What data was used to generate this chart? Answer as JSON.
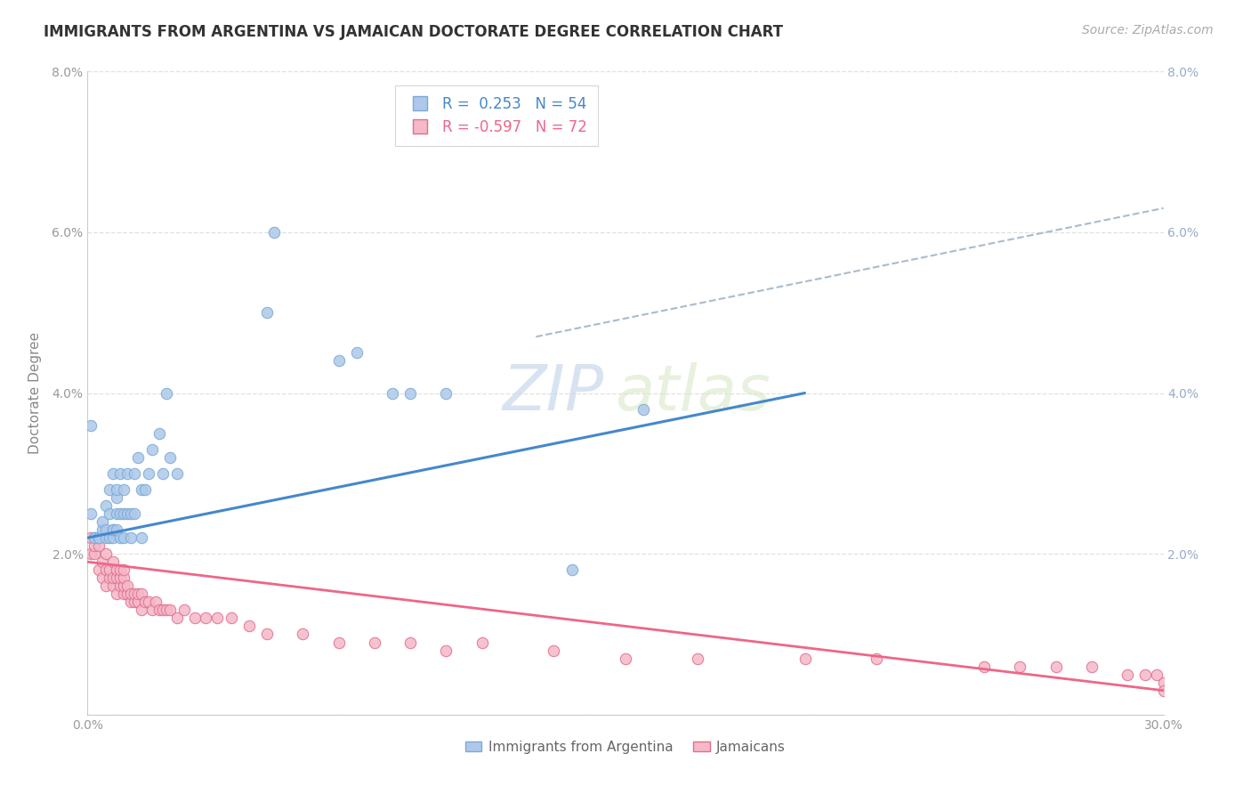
{
  "title": "IMMIGRANTS FROM ARGENTINA VS JAMAICAN DOCTORATE DEGREE CORRELATION CHART",
  "source": "Source: ZipAtlas.com",
  "ylabel": "Doctorate Degree",
  "x_min": 0.0,
  "x_max": 0.3,
  "y_min": 0.0,
  "y_max": 0.08,
  "x_ticks": [
    0.0,
    0.05,
    0.1,
    0.15,
    0.2,
    0.25,
    0.3
  ],
  "x_tick_labels": [
    "0.0%",
    "",
    "",
    "",
    "",
    "",
    "30.0%"
  ],
  "y_ticks": [
    0.0,
    0.02,
    0.04,
    0.06,
    0.08
  ],
  "y_tick_labels_left": [
    "",
    "2.0%",
    "4.0%",
    "6.0%",
    "8.0%"
  ],
  "y_tick_labels_right": [
    "",
    "2.0%",
    "4.0%",
    "6.0%",
    "8.0%"
  ],
  "argentina_color": "#adc8ea",
  "argentina_edge_color": "#7aaad4",
  "jamaican_color": "#f5b8c8",
  "jamaican_edge_color": "#e07090",
  "argentina_R": 0.253,
  "argentina_N": 54,
  "jamaican_R": -0.597,
  "jamaican_N": 72,
  "argentina_line_color": "#4488cc",
  "jamaican_line_color": "#ee6688",
  "argentina_trend_x": [
    0.0,
    0.2
  ],
  "argentina_trend_y": [
    0.022,
    0.04
  ],
  "jamaican_trend_x": [
    0.0,
    0.3
  ],
  "jamaican_trend_y": [
    0.019,
    0.003
  ],
  "extrapolated_trend_x": [
    0.125,
    0.3
  ],
  "extrapolated_trend_y": [
    0.047,
    0.063
  ],
  "watermark_zip": "ZIP",
  "watermark_atlas": "atlas",
  "background_color": "#ffffff",
  "grid_color": "#e0e0e0",
  "title_fontsize": 12,
  "axis_label_fontsize": 11,
  "tick_fontsize": 10,
  "legend_fontsize": 12,
  "source_fontsize": 10,
  "marker_size": 80,
  "argentina_scatter_x": [
    0.001,
    0.001,
    0.002,
    0.002,
    0.003,
    0.003,
    0.004,
    0.004,
    0.005,
    0.005,
    0.005,
    0.006,
    0.006,
    0.006,
    0.007,
    0.007,
    0.007,
    0.007,
    0.008,
    0.008,
    0.008,
    0.008,
    0.009,
    0.009,
    0.009,
    0.01,
    0.01,
    0.01,
    0.011,
    0.011,
    0.012,
    0.012,
    0.013,
    0.013,
    0.014,
    0.015,
    0.015,
    0.016,
    0.017,
    0.018,
    0.02,
    0.021,
    0.022,
    0.023,
    0.025,
    0.05,
    0.052,
    0.07,
    0.075,
    0.085,
    0.09,
    0.1,
    0.135,
    0.155
  ],
  "argentina_scatter_y": [
    0.036,
    0.025,
    0.022,
    0.022,
    0.022,
    0.022,
    0.023,
    0.024,
    0.026,
    0.022,
    0.023,
    0.022,
    0.025,
    0.028,
    0.022,
    0.023,
    0.023,
    0.03,
    0.023,
    0.027,
    0.025,
    0.028,
    0.022,
    0.025,
    0.03,
    0.022,
    0.025,
    0.028,
    0.025,
    0.03,
    0.022,
    0.025,
    0.025,
    0.03,
    0.032,
    0.022,
    0.028,
    0.028,
    0.03,
    0.033,
    0.035,
    0.03,
    0.04,
    0.032,
    0.03,
    0.05,
    0.06,
    0.044,
    0.045,
    0.04,
    0.04,
    0.04,
    0.018,
    0.038
  ],
  "jamaican_scatter_x": [
    0.001,
    0.001,
    0.002,
    0.002,
    0.003,
    0.003,
    0.004,
    0.004,
    0.005,
    0.005,
    0.005,
    0.006,
    0.006,
    0.007,
    0.007,
    0.007,
    0.008,
    0.008,
    0.008,
    0.009,
    0.009,
    0.009,
    0.01,
    0.01,
    0.01,
    0.01,
    0.011,
    0.011,
    0.012,
    0.012,
    0.013,
    0.013,
    0.014,
    0.014,
    0.015,
    0.015,
    0.016,
    0.017,
    0.018,
    0.019,
    0.02,
    0.021,
    0.022,
    0.023,
    0.025,
    0.027,
    0.03,
    0.033,
    0.036,
    0.04,
    0.045,
    0.05,
    0.06,
    0.07,
    0.08,
    0.09,
    0.1,
    0.11,
    0.13,
    0.15,
    0.17,
    0.2,
    0.22,
    0.25,
    0.26,
    0.27,
    0.28,
    0.29,
    0.295,
    0.298,
    0.3,
    0.3
  ],
  "jamaican_scatter_y": [
    0.022,
    0.02,
    0.02,
    0.021,
    0.018,
    0.021,
    0.017,
    0.019,
    0.016,
    0.018,
    0.02,
    0.017,
    0.018,
    0.016,
    0.017,
    0.019,
    0.015,
    0.017,
    0.018,
    0.016,
    0.017,
    0.018,
    0.015,
    0.016,
    0.017,
    0.018,
    0.015,
    0.016,
    0.014,
    0.015,
    0.014,
    0.015,
    0.014,
    0.015,
    0.013,
    0.015,
    0.014,
    0.014,
    0.013,
    0.014,
    0.013,
    0.013,
    0.013,
    0.013,
    0.012,
    0.013,
    0.012,
    0.012,
    0.012,
    0.012,
    0.011,
    0.01,
    0.01,
    0.009,
    0.009,
    0.009,
    0.008,
    0.009,
    0.008,
    0.007,
    0.007,
    0.007,
    0.007,
    0.006,
    0.006,
    0.006,
    0.006,
    0.005,
    0.005,
    0.005,
    0.004,
    0.003
  ]
}
